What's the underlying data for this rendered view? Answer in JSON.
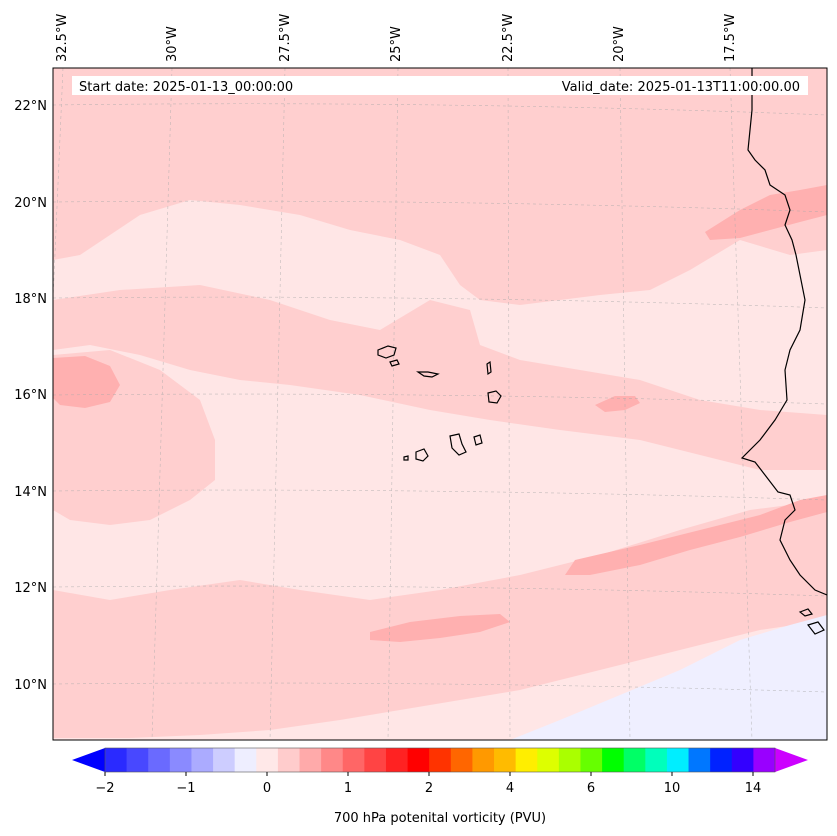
{
  "info": {
    "start_date": "Start date: 2025-01-13_00:00:00",
    "valid_date": "Valid_date: 2025-01-13T11:00:00.00"
  },
  "axes": {
    "longitude_labels": [
      "32.5°W",
      "30°W",
      "27.5°W",
      "25°W",
      "22.5°W",
      "20°W",
      "17.5°W"
    ],
    "latitude_labels": [
      "22°N",
      "20°N",
      "18°N",
      "16°N",
      "14°N",
      "12°N",
      "10°N"
    ]
  },
  "colorbar": {
    "title": "700 hPa potenital vorticity (PVU)",
    "tick_labels": [
      "−2",
      "−1",
      "0",
      "1",
      "2",
      "4",
      "6",
      "10",
      "14"
    ],
    "colors": [
      "#0000ff",
      "#2a2aff",
      "#4848ff",
      "#6a6aff",
      "#8a8aff",
      "#ababff",
      "#cdcdff",
      "#eeeeff",
      "#ffe8e8",
      "#ffcccc",
      "#ffaaaa",
      "#ff8888",
      "#ff6666",
      "#ff4444",
      "#ff2222",
      "#ff0000",
      "#ff3300",
      "#ff6600",
      "#ff9900",
      "#ffbb00",
      "#ffee00",
      "#ddff00",
      "#aaff00",
      "#66ff00",
      "#00ff00",
      "#00ff66",
      "#00ffbb",
      "#00eeff",
      "#0077ff",
      "#0022ff",
      "#3300ff",
      "#9900ff",
      "#cc00ff"
    ]
  },
  "fill_colors": {
    "background": "#ffe6e6",
    "band": "#ffcfcf",
    "core": "#ffb0b0",
    "negative": "#efefff",
    "coast": "#000000"
  }
}
